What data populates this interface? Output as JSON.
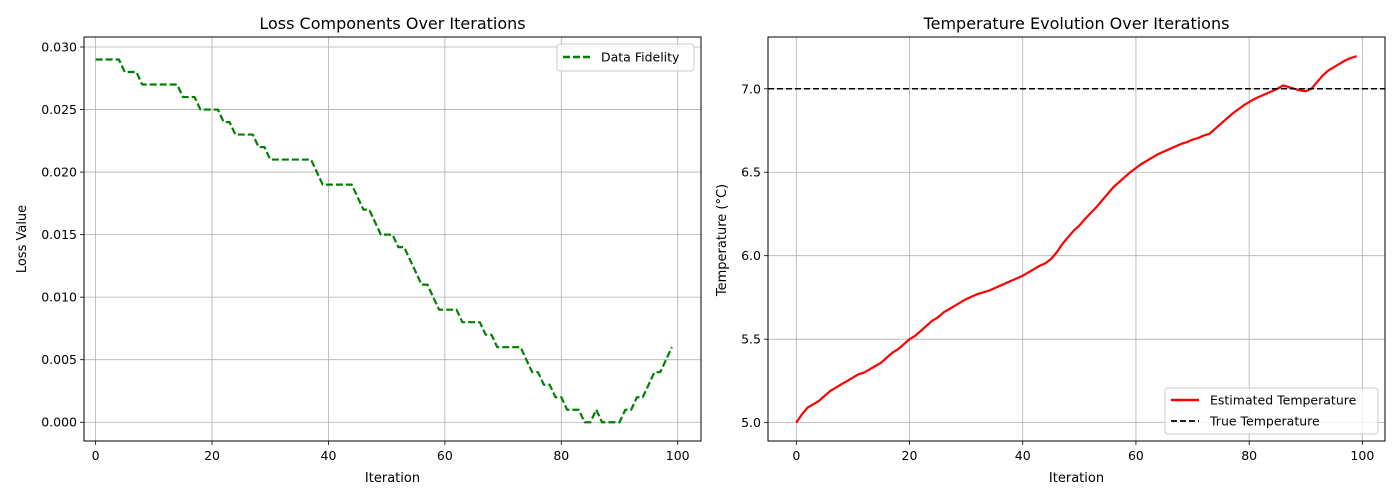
{
  "chart_data": [
    {
      "type": "line",
      "title": "Loss Components Over Iterations",
      "xlabel": "Iteration",
      "ylabel": "Loss Value",
      "xlim": [
        -2,
        104
      ],
      "ylim": [
        -0.0015,
        0.0308
      ],
      "xticks": [
        0,
        20,
        40,
        60,
        80,
        100
      ],
      "yticks": [
        0.0,
        0.005,
        0.01,
        0.015,
        0.02,
        0.025,
        0.03
      ],
      "ytick_labels": [
        "0.000",
        "0.005",
        "0.010",
        "0.015",
        "0.020",
        "0.025",
        "0.030"
      ],
      "grid": true,
      "legend_position": "top-right",
      "series": [
        {
          "name": "Data Fidelity",
          "color": "#008000",
          "style": "dashed",
          "x": [
            0,
            1,
            2,
            3,
            4,
            5,
            6,
            7,
            8,
            9,
            10,
            11,
            12,
            13,
            14,
            15,
            16,
            17,
            18,
            19,
            20,
            21,
            22,
            23,
            24,
            25,
            26,
            27,
            28,
            29,
            30,
            31,
            32,
            33,
            34,
            35,
            36,
            37,
            38,
            39,
            40,
            41,
            42,
            43,
            44,
            45,
            46,
            47,
            48,
            49,
            50,
            51,
            52,
            53,
            54,
            55,
            56,
            57,
            58,
            59,
            60,
            61,
            62,
            63,
            64,
            65,
            66,
            67,
            68,
            69,
            70,
            71,
            72,
            73,
            74,
            75,
            76,
            77,
            78,
            79,
            80,
            81,
            82,
            83,
            84,
            85,
            86,
            87,
            88,
            89,
            90,
            91,
            92,
            93,
            94,
            95,
            96,
            97,
            98,
            99
          ],
          "values": [
            0.029,
            0.029,
            0.029,
            0.029,
            0.029,
            0.028,
            0.028,
            0.028,
            0.027,
            0.027,
            0.027,
            0.027,
            0.027,
            0.027,
            0.027,
            0.026,
            0.026,
            0.026,
            0.025,
            0.025,
            0.025,
            0.025,
            0.024,
            0.024,
            0.023,
            0.023,
            0.023,
            0.023,
            0.022,
            0.022,
            0.021,
            0.021,
            0.021,
            0.021,
            0.021,
            0.021,
            0.021,
            0.021,
            0.02,
            0.019,
            0.019,
            0.019,
            0.019,
            0.019,
            0.019,
            0.018,
            0.017,
            0.017,
            0.016,
            0.015,
            0.015,
            0.015,
            0.014,
            0.014,
            0.013,
            0.012,
            0.011,
            0.011,
            0.01,
            0.009,
            0.009,
            0.009,
            0.009,
            0.008,
            0.008,
            0.008,
            0.008,
            0.007,
            0.007,
            0.006,
            0.006,
            0.006,
            0.006,
            0.006,
            0.005,
            0.004,
            0.004,
            0.003,
            0.003,
            0.002,
            0.002,
            0.001,
            0.001,
            0.001,
            0.0,
            0.0,
            0.001,
            0.0,
            0.0,
            0.0,
            0.0,
            0.001,
            0.001,
            0.002,
            0.002,
            0.003,
            0.004,
            0.004,
            0.005,
            0.006
          ]
        }
      ]
    },
    {
      "type": "line",
      "title": "Temperature Evolution Over Iterations",
      "xlabel": "Iteration",
      "ylabel": "Temperature (°C)",
      "xlim": [
        -5,
        104
      ],
      "ylim": [
        4.89,
        7.31
      ],
      "xticks": [
        0,
        20,
        40,
        60,
        80,
        100
      ],
      "yticks": [
        5.0,
        5.5,
        6.0,
        6.5,
        7.0
      ],
      "ytick_labels": [
        "5.0",
        "5.5",
        "6.0",
        "6.5",
        "7.0"
      ],
      "grid": true,
      "legend_position": "bottom-right",
      "series": [
        {
          "name": "Estimated Temperature",
          "color": "#ff0000",
          "style": "solid",
          "x": [
            0,
            1,
            2,
            3,
            4,
            5,
            6,
            7,
            8,
            9,
            10,
            11,
            12,
            13,
            14,
            15,
            16,
            17,
            18,
            19,
            20,
            21,
            22,
            23,
            24,
            25,
            26,
            27,
            28,
            29,
            30,
            31,
            32,
            33,
            34,
            35,
            36,
            37,
            38,
            39,
            40,
            41,
            42,
            43,
            44,
            45,
            46,
            47,
            48,
            49,
            50,
            51,
            52,
            53,
            54,
            55,
            56,
            57,
            58,
            59,
            60,
            61,
            62,
            63,
            64,
            65,
            66,
            67,
            68,
            69,
            70,
            71,
            72,
            73,
            74,
            75,
            76,
            77,
            78,
            79,
            80,
            81,
            82,
            83,
            84,
            85,
            86,
            87,
            88,
            89,
            90,
            91,
            92,
            93,
            94,
            95,
            96,
            97,
            98,
            99
          ],
          "values": [
            5.0,
            5.05,
            5.09,
            5.11,
            5.13,
            5.16,
            5.19,
            5.21,
            5.23,
            5.25,
            5.27,
            5.29,
            5.3,
            5.32,
            5.34,
            5.36,
            5.39,
            5.42,
            5.44,
            5.47,
            5.5,
            5.52,
            5.55,
            5.58,
            5.61,
            5.63,
            5.66,
            5.68,
            5.7,
            5.72,
            5.74,
            5.755,
            5.77,
            5.78,
            5.79,
            5.805,
            5.82,
            5.835,
            5.85,
            5.865,
            5.88,
            5.9,
            5.92,
            5.94,
            5.955,
            5.98,
            6.02,
            6.07,
            6.11,
            6.15,
            6.18,
            6.22,
            6.255,
            6.29,
            6.33,
            6.37,
            6.41,
            6.44,
            6.47,
            6.5,
            6.525,
            6.55,
            6.57,
            6.59,
            6.61,
            6.625,
            6.64,
            6.655,
            6.67,
            6.68,
            6.695,
            6.705,
            6.72,
            6.73,
            6.76,
            6.79,
            6.82,
            6.85,
            6.875,
            6.9,
            6.92,
            6.94,
            6.955,
            6.97,
            6.985,
            7.0,
            7.02,
            7.01,
            7.0,
            6.99,
            6.985,
            7.0,
            7.04,
            7.08,
            7.11,
            7.13,
            7.15,
            7.17,
            7.185,
            7.195
          ]
        },
        {
          "name": "True Temperature",
          "color": "#000000",
          "style": "dashed",
          "hline": 7.0
        }
      ]
    }
  ]
}
